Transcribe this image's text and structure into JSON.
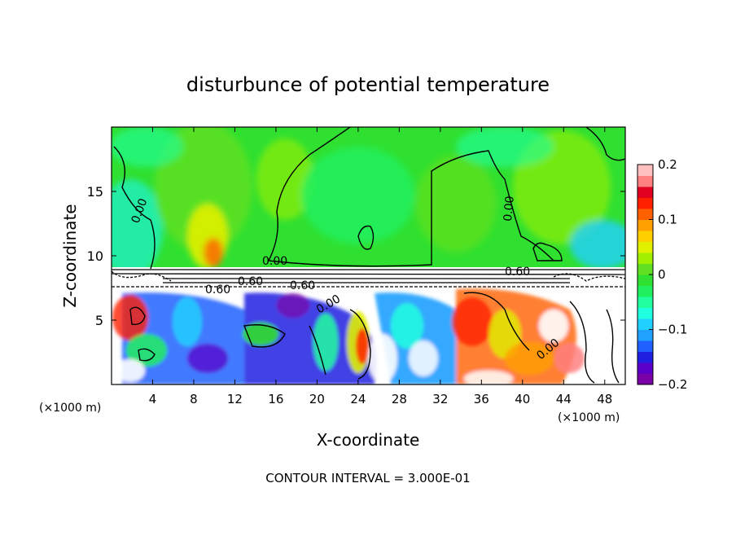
{
  "chart_data": {
    "type": "heatmap",
    "title": "disturbunce of potential temperature",
    "xlabel": "X-coordinate",
    "ylabel": "Z-coordinate",
    "x_ticks": [
      4,
      8,
      12,
      16,
      20,
      24,
      28,
      32,
      36,
      40,
      44,
      48
    ],
    "y_ticks": [
      5,
      10,
      15
    ],
    "x_unit": "(×1000 m)",
    "y_unit": "(×1000 m)",
    "xlim": [
      0,
      50
    ],
    "ylim": [
      0,
      20
    ],
    "colorbar": {
      "ticks": [
        "0.2",
        "0.1",
        "0",
        "−0.1",
        "−0.2"
      ],
      "range": [
        -0.2,
        0.2
      ],
      "colors": [
        "#7a00a8",
        "#5a00c8",
        "#2020e0",
        "#2060ff",
        "#20a0ff",
        "#20d0ff",
        "#20ffe0",
        "#20ffa0",
        "#20f060",
        "#30e030",
        "#60e020",
        "#a0f000",
        "#e0f000",
        "#ffd000",
        "#ffa000",
        "#ff6000",
        "#ff2000",
        "#e00020",
        "#ff8080",
        "#ffc0c0"
      ]
    },
    "contour_labels": [
      "0.00",
      "0.00",
      "0.00",
      "0.60",
      "0.60",
      "0.60",
      "0.60",
      "0.00",
      "0.00"
    ],
    "annotation": "CONTOUR INTERVAL = 3.000E-01"
  }
}
